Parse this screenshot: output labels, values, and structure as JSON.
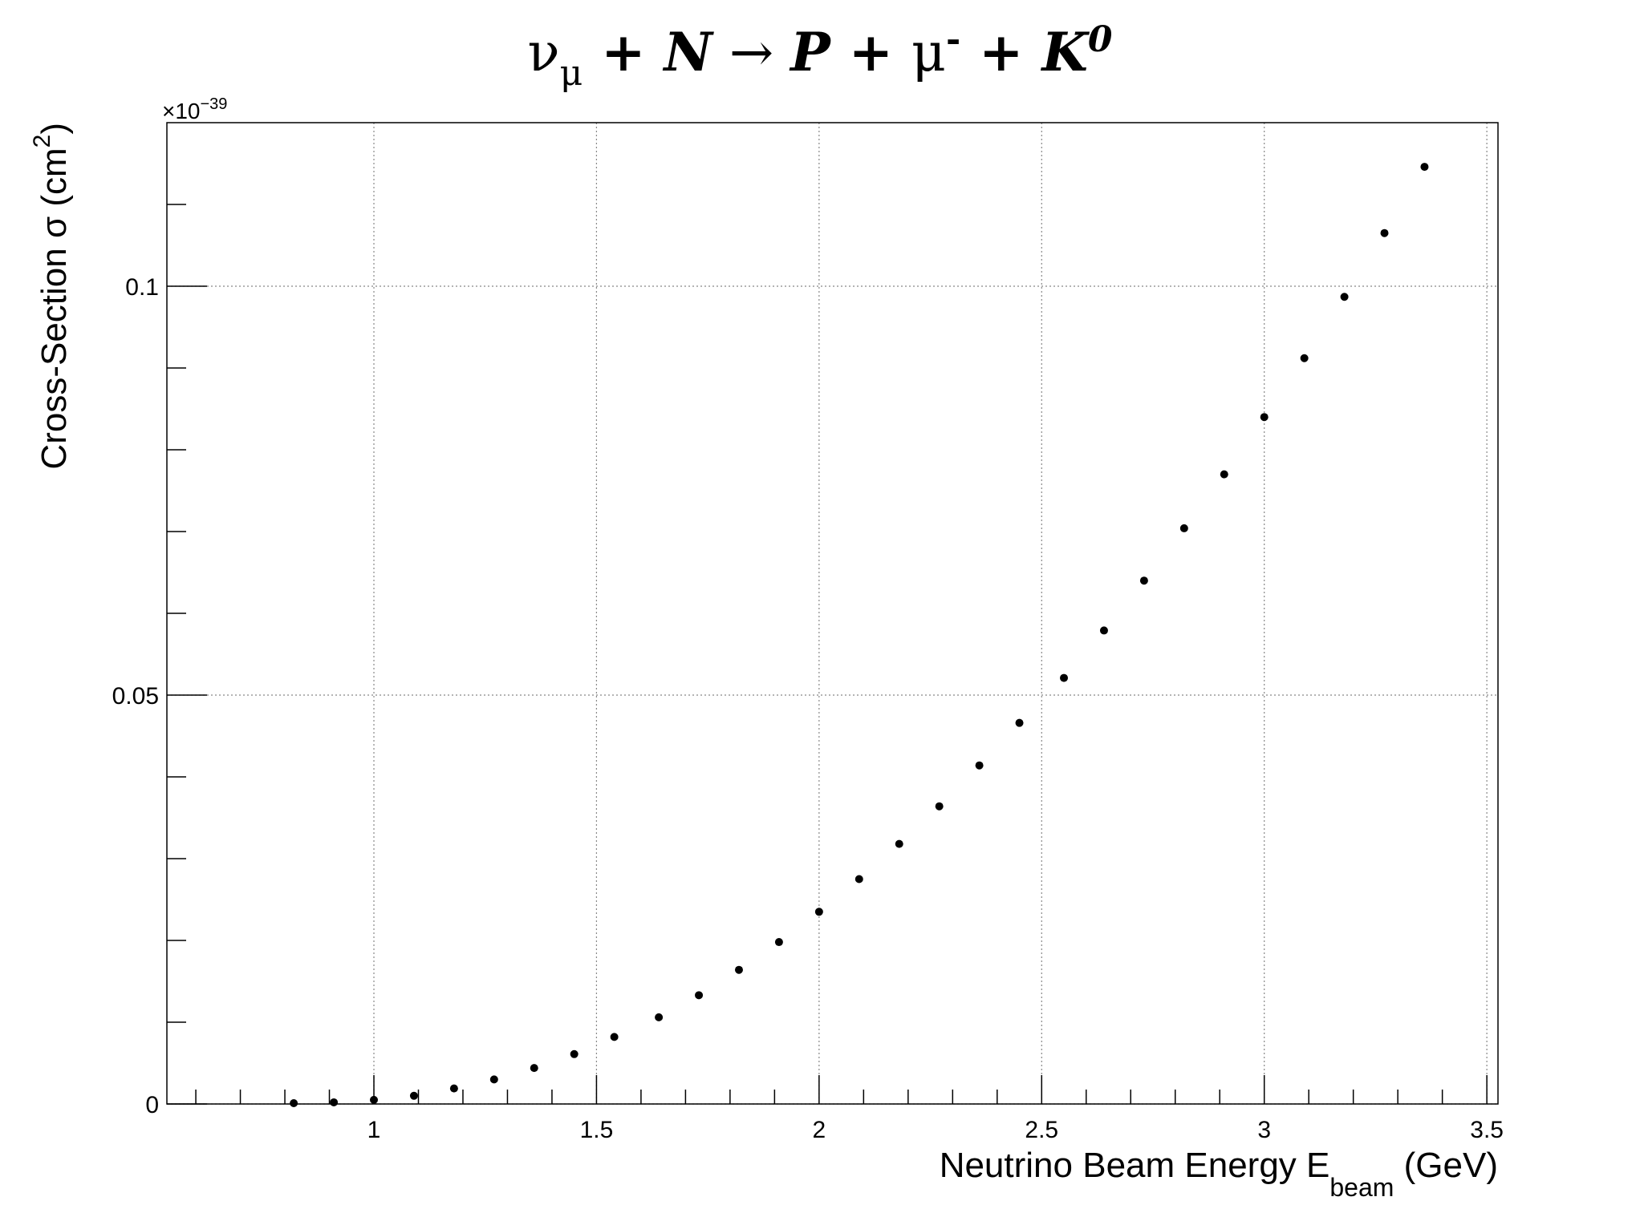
{
  "chart_data": {
    "type": "scatter",
    "title": {
      "nu": "ν",
      "mu_sub": "μ",
      "plus1": " + ",
      "N": "N",
      "arrow": "  → ",
      "P": "P",
      "plus2": " + ",
      "mu": "μ",
      "minus_sup": "-",
      "plus3": " + ",
      "K": "K",
      "zero_sup": "0"
    },
    "xlabel": {
      "main": "Neutrino Beam Energy E",
      "sub": "beam",
      "tail": " (GeV)"
    },
    "ylabel": {
      "main": "Cross-Section σ (cm",
      "sup": "2",
      "tail": ")"
    },
    "y_exponent": {
      "prefix": "×10",
      "sup": "−39"
    },
    "xlim": [
      0.535,
      3.525
    ],
    "ylim": [
      0,
      0.12
    ],
    "x_ticks": [
      1,
      1.5,
      2,
      2.5,
      3,
      3.5
    ],
    "x_tick_labels": [
      "1",
      "1.5",
      "2",
      "2.5",
      "3",
      "3.5"
    ],
    "y_ticks": [
      0,
      0.05,
      0.1
    ],
    "y_tick_labels": [
      "0",
      "0.05",
      "0.1"
    ],
    "grid": true,
    "marker_color": "#000000",
    "x": [
      0.82,
      0.91,
      1.0,
      1.09,
      1.18,
      1.27,
      1.36,
      1.45,
      1.54,
      1.64,
      1.73,
      1.82,
      1.91,
      2.0,
      2.09,
      2.18,
      2.27,
      2.36,
      2.45,
      2.55,
      2.64,
      2.73,
      2.82,
      2.91,
      3.0,
      3.09,
      3.18,
      3.27,
      3.36
    ],
    "y": [
      0.0001,
      0.0002,
      0.0005,
      0.001,
      0.0019,
      0.003,
      0.0044,
      0.0061,
      0.0082,
      0.0106,
      0.0133,
      0.0164,
      0.0198,
      0.0235,
      0.0275,
      0.0318,
      0.0364,
      0.0414,
      0.0466,
      0.0521,
      0.0579,
      0.064,
      0.0704,
      0.077,
      0.084,
      0.0912,
      0.0987,
      0.1065,
      0.1146
    ]
  }
}
